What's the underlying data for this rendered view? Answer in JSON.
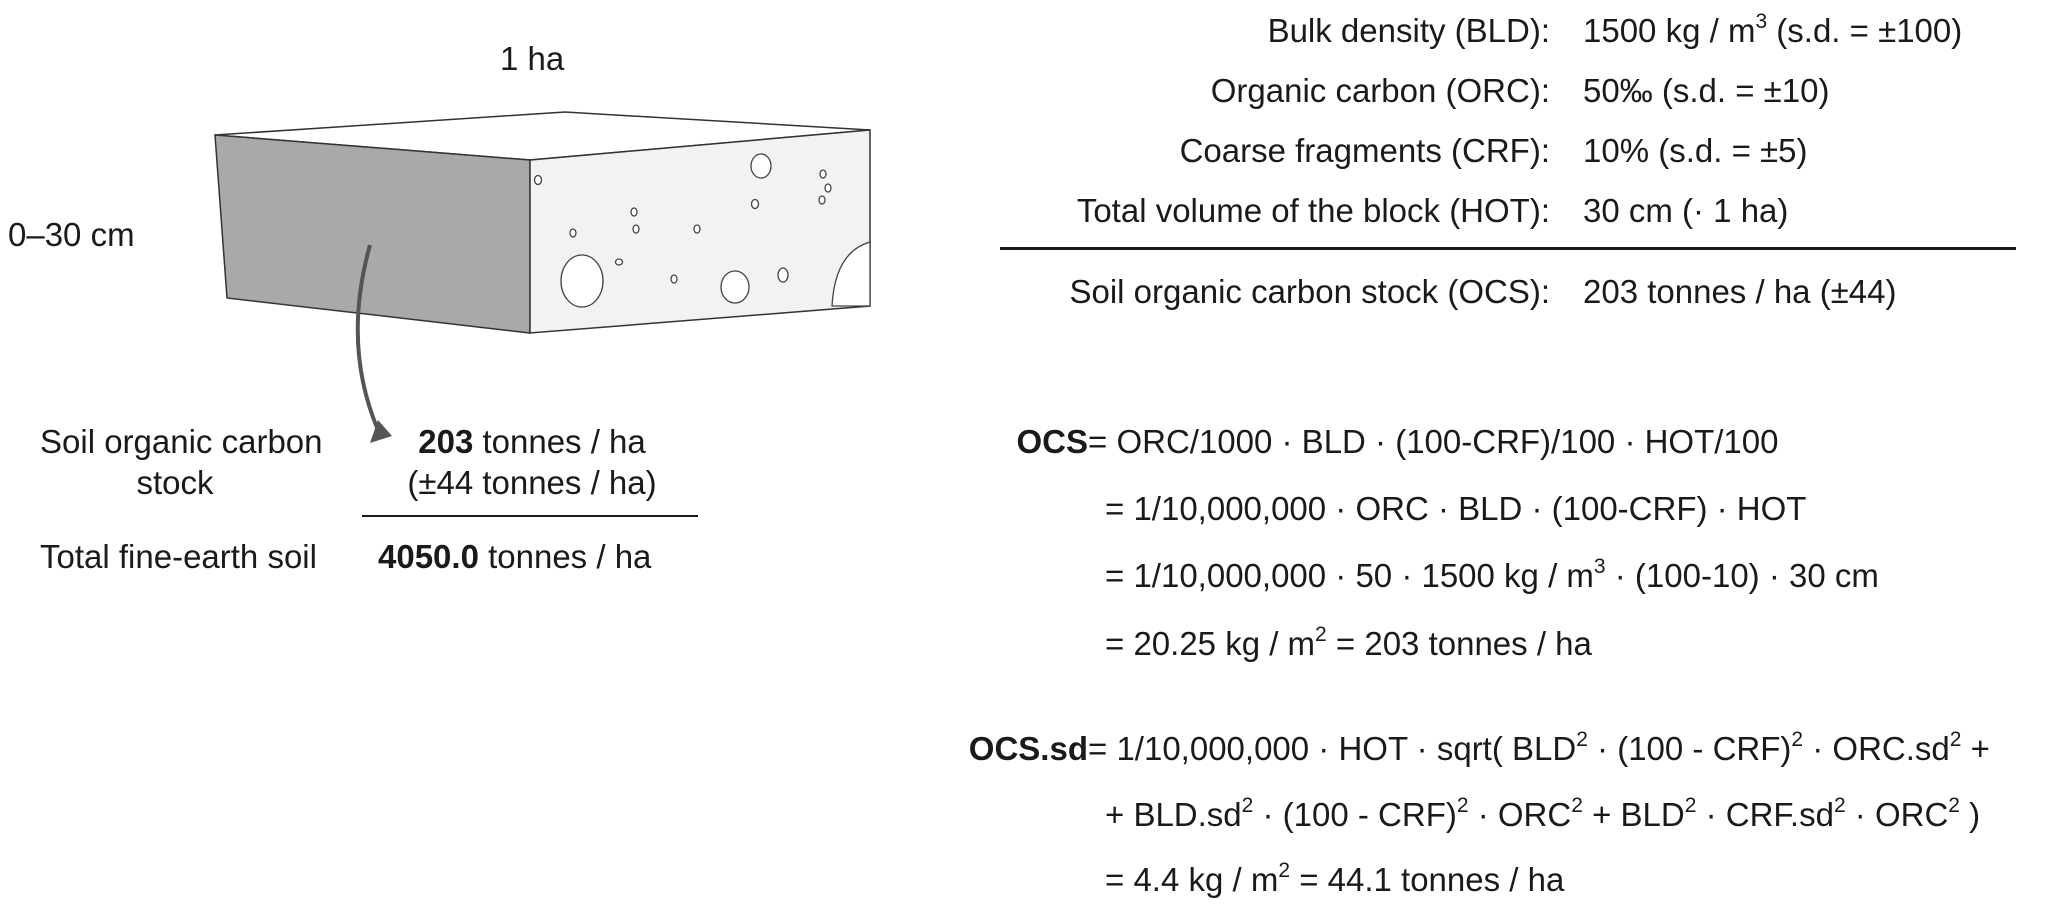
{
  "block": {
    "area_label": "1 ha",
    "depth_label": "0–30 cm"
  },
  "left": {
    "ocs_label_line1": "Soil organic carbon",
    "ocs_label_line2": "stock",
    "ocs_value": "203",
    "ocs_unit": " tonnes / ha",
    "ocs_sd": "(±44 tonnes / ha)",
    "fine_label": "Total fine-earth soil",
    "fine_value": "4050.0",
    "fine_unit": " tonnes / ha"
  },
  "params": [
    {
      "label": "Bulk density (BLD):",
      "value_a": "1500 kg / m",
      "sup": "3",
      "value_b": " (s.d. = ±100)"
    },
    {
      "label": "Organic carbon (ORC):",
      "value_a": "50‰ (s.d. = ±10)",
      "sup": "",
      "value_b": ""
    },
    {
      "label": "Coarse fragments (CRF):",
      "value_a": "10% (s.d. = ±5)",
      "sup": "",
      "value_b": ""
    },
    {
      "label": "Total volume of the block (HOT):",
      "value_a": "30 cm (· 1 ha)",
      "sup": "",
      "value_b": ""
    }
  ],
  "result": {
    "label": "Soil organic carbon stock (OCS):",
    "value": "203 tonnes / ha (±44)"
  },
  "formula_ocs": {
    "name": "OCS",
    "line1": " = ORC/1000 · BLD · (100-CRF)/100 · HOT/100",
    "line2": "= 1/10,000,000 · ORC · BLD · (100-CRF) · HOT",
    "line3a": "= 1/10,000,000 · 50 · 1500 kg / m",
    "line3sup": "3",
    "line3b": " · (100-10) · 30 cm",
    "line4a": "= 20.25 kg / m",
    "line4sup": "2",
    "line4b": " = 203 tonnes / ha"
  },
  "formula_sd": {
    "name": "OCS.sd",
    "l1a": " = 1/10,000,000 · HOT · sqrt( BLD",
    "l1s1": "2",
    "l1b": " · (100 - CRF)",
    "l1s2": "2",
    "l1c": " · ORC.sd",
    "l1s3": "2",
    "l1d": " +",
    "l2a": "+ BLD.sd",
    "l2s1": "2",
    "l2b": " · (100 - CRF)",
    "l2s2": "2",
    "l2c": " · ORC",
    "l2s3": "2",
    "l2d": " + BLD",
    "l2s4": "2",
    "l2e": " · CRF.sd",
    "l2s5": "2",
    "l2f": " · ORC",
    "l2s6": "2",
    "l2g": " )",
    "l3a": "= 4.4 kg / m",
    "l3sup": "2",
    "l3b": " = 44.1 tonnes / ha"
  }
}
